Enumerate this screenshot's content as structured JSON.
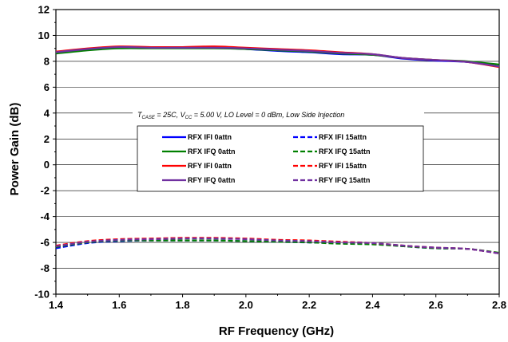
{
  "chart_data": {
    "type": "line",
    "xlabel": "RF Frequency (GHz)",
    "ylabel": "Power Gain (dB)",
    "xlim": [
      1.4,
      2.8
    ],
    "ylim": [
      -10,
      12
    ],
    "xticks": [
      "1.4",
      "1.6",
      "1.8",
      "2.0",
      "2.2",
      "2.4",
      "2.6",
      "2.8"
    ],
    "yticks": [
      "-10",
      "-8",
      "-6",
      "-4",
      "-2",
      "0",
      "2",
      "4",
      "6",
      "8",
      "10",
      "12"
    ],
    "grid": "horizontal",
    "legend_placement": "center",
    "annotation": {
      "t_main": "T",
      "t_sub": "CASE",
      "t_value": " = 25C,  V",
      "v_sub": "CC",
      "rest": " =  5.00 V,  LO Level = 0 dBm,  Low Side Injection"
    },
    "x": [
      1.4,
      1.5,
      1.6,
      1.7,
      1.8,
      1.9,
      2.0,
      2.1,
      2.2,
      2.3,
      2.4,
      2.5,
      2.6,
      2.7,
      2.8
    ],
    "series": [
      {
        "name": "RFX IFI 0attn",
        "color": "#0000ff",
        "dash": "solid",
        "values": [
          8.65,
          8.9,
          9.05,
          9.05,
          9.05,
          9.05,
          8.95,
          8.8,
          8.7,
          8.55,
          8.5,
          8.2,
          8.05,
          7.95,
          7.6
        ]
      },
      {
        "name": "RFX IFI 15attn",
        "color": "#0000ff",
        "dash": "dashed",
        "values": [
          -6.45,
          -6.05,
          -5.9,
          -5.85,
          -5.85,
          -5.85,
          -5.9,
          -5.95,
          -6.0,
          -6.05,
          -6.1,
          -6.3,
          -6.45,
          -6.5,
          -6.85
        ]
      },
      {
        "name": "RFX IFQ 0attn",
        "color": "#008000",
        "dash": "solid",
        "values": [
          8.6,
          8.85,
          9.0,
          9.0,
          9.0,
          9.0,
          8.95,
          8.85,
          8.75,
          8.6,
          8.5,
          8.25,
          8.1,
          8.0,
          7.75
        ]
      },
      {
        "name": "RFX IFQ 15attn",
        "color": "#008000",
        "dash": "dashed",
        "values": [
          -6.35,
          -6.0,
          -5.85,
          -5.85,
          -5.85,
          -5.85,
          -5.9,
          -5.95,
          -6.0,
          -6.1,
          -6.15,
          -6.3,
          -6.45,
          -6.5,
          -6.8
        ]
      },
      {
        "name": "RFY IFI 0attn",
        "color": "#ff0000",
        "dash": "solid",
        "values": [
          8.75,
          9.0,
          9.15,
          9.1,
          9.1,
          9.15,
          9.05,
          8.95,
          8.85,
          8.7,
          8.55,
          8.25,
          8.1,
          7.95,
          7.55
        ]
      },
      {
        "name": "RFY IFI 15attn",
        "color": "#ff0000",
        "dash": "dashed",
        "values": [
          -6.25,
          -5.9,
          -5.75,
          -5.7,
          -5.65,
          -5.65,
          -5.7,
          -5.8,
          -5.85,
          -5.95,
          -6.05,
          -6.25,
          -6.4,
          -6.5,
          -6.85
        ]
      },
      {
        "name": "RFY IFQ 0attn",
        "color": "#7030a0",
        "dash": "solid",
        "values": [
          8.7,
          8.95,
          9.1,
          9.05,
          9.05,
          9.05,
          9.0,
          8.9,
          8.8,
          8.65,
          8.55,
          8.25,
          8.1,
          7.95,
          7.6
        ]
      },
      {
        "name": "RFY IFQ 15attn",
        "color": "#7030a0",
        "dash": "dashed",
        "values": [
          -6.3,
          -5.95,
          -5.8,
          -5.75,
          -5.7,
          -5.7,
          -5.75,
          -5.85,
          -5.9,
          -6.0,
          -6.05,
          -6.25,
          -6.4,
          -6.5,
          -6.85
        ]
      }
    ]
  }
}
